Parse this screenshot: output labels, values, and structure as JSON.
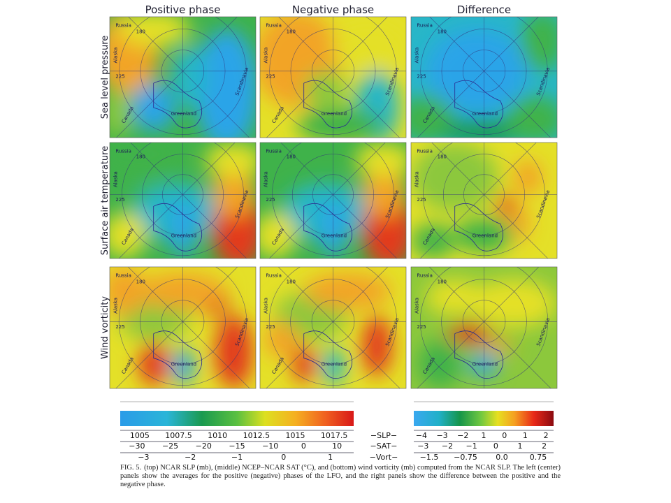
{
  "columns": [
    "Positive phase",
    "Negative phase",
    "Difference"
  ],
  "rows": [
    "Sea level pressure",
    "Surface air temperature",
    "Wind vorticity"
  ],
  "map_labels": {
    "russia": "Russia",
    "alaska": "Alaska",
    "canada": "Canada",
    "greenland": "Greenland",
    "scandinavia": "Scandinavia",
    "lon_225": "225",
    "lon_180": "180"
  },
  "colorbars": {
    "left": {
      "slp": [
        "1005",
        "1007.5",
        "1010",
        "1012.5",
        "1015",
        "1017.5"
      ],
      "sat": [
        "−30",
        "−25",
        "−20",
        "−15",
        "−10",
        "0",
        "10"
      ],
      "vort": [
        "−3",
        "−2",
        "−1",
        "0",
        "1"
      ]
    },
    "middle": [
      "−SLP−",
      "−SAT−",
      "−Vort−"
    ],
    "right": {
      "slp": [
        "−4",
        "−3",
        "−2",
        "1",
        "0",
        "1",
        "2"
      ],
      "sat": [
        "−3",
        "−2",
        "−1",
        "0",
        "1",
        "2"
      ],
      "vort": [
        "−1.5",
        "−0.75",
        "0.0",
        "0.75"
      ]
    }
  },
  "caption": {
    "label": "FIG. 5.",
    "text": "(top) NCAR SLP (mb), (middle) NCEP–NCAR SAT (°C), and (bottom) wind vorticity (mb) computed from the NCAR SLP. The left (center) panels show the averages for the positive (negative) phases of the LFO, and the right panels show the difference between the positive and the negative phase."
  }
}
